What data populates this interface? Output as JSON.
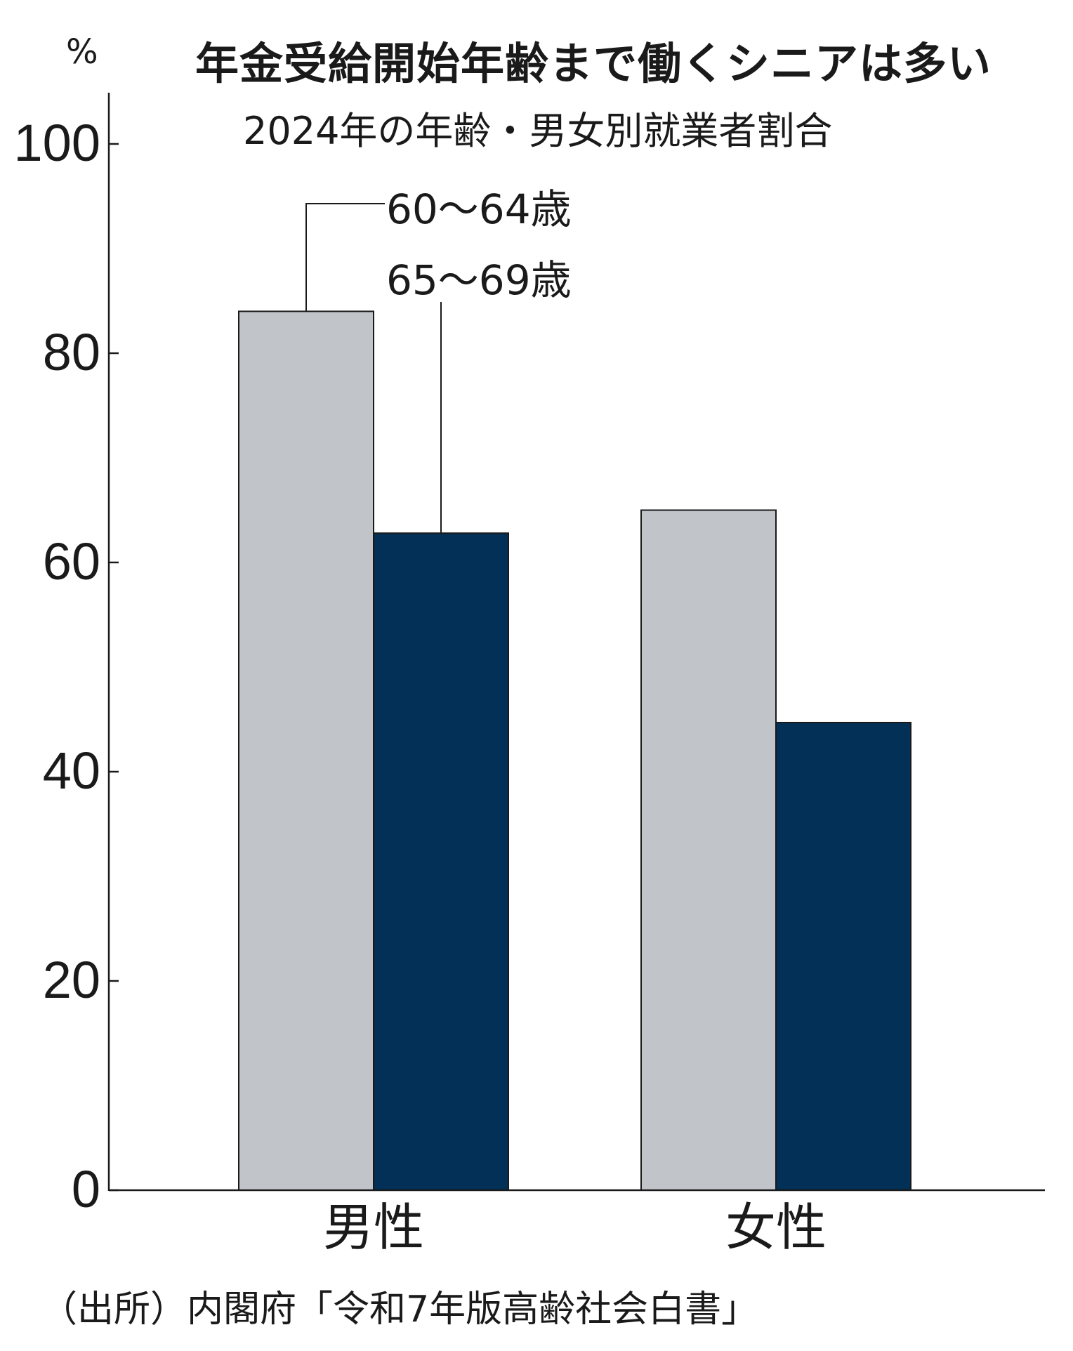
{
  "title": "年金受給開始年齢まで働くシニアは多い",
  "subtitle": "2024年の年齢・男女別就業者割合",
  "unit": "%",
  "source": "（出所）内閣府「令和7年版高齢社会白書」",
  "colors": {
    "series1": "#c1c5c9",
    "series2": "#023056",
    "axis": "#1a1a1a"
  },
  "chart_data": {
    "type": "bar",
    "categories": [
      "男性",
      "女性"
    ],
    "series": [
      {
        "name": "60～64歳",
        "values": [
          84.0,
          65.0
        ]
      },
      {
        "name": "65～69歳",
        "values": [
          62.8,
          44.7
        ]
      }
    ],
    "ylabel": "%",
    "yticks": [
      0,
      20,
      40,
      60,
      80,
      100
    ],
    "ylim": [
      0,
      105
    ],
    "grid": false,
    "legend": "callout labels above bars"
  }
}
